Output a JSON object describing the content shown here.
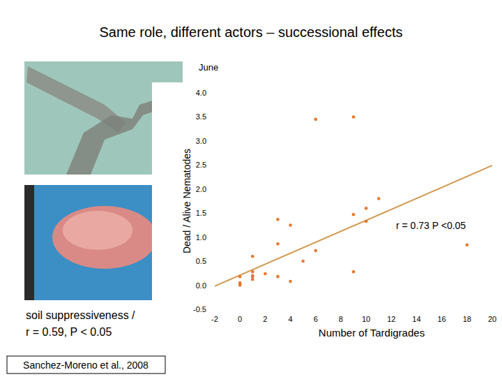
{
  "slide": {
    "title": "Same role, different actors – successional effects",
    "caption_lines": [
      "soil suppressiveness /",
      "r = 0.59, P < 0.05"
    ],
    "citation": "Sanchez-Moreno et al., 2008"
  },
  "chart_data": {
    "type": "scatter",
    "title": "June",
    "x_label": "Number of Tardigrades",
    "y_label": "Dead / Alive Nematodes",
    "annotation": "r = 0.73 P <0.05",
    "xlim": [
      -2,
      20
    ],
    "ylim": [
      -0.5,
      4
    ],
    "xticks": [
      -2,
      0,
      2,
      4,
      6,
      8,
      10,
      12,
      14,
      16,
      18,
      20
    ],
    "yticks": [
      -0.5,
      {
        "value": 0,
        "label": "0.0"
      },
      0.5,
      {
        "value": 1,
        "label": "1.0"
      },
      1.5,
      {
        "value": 2,
        "label": "2.0"
      },
      2.5,
      {
        "value": 3,
        "label": "3.0"
      },
      3.5,
      {
        "value": 4,
        "label": "4.0"
      }
    ],
    "grid": false,
    "series": [
      {
        "type": "scatter",
        "color": "#e8772e",
        "marker": "circle",
        "x": [
          6,
          9,
          0,
          0,
          0,
          0,
          1,
          1,
          1,
          1,
          1,
          2,
          3,
          3,
          3,
          4,
          4,
          5,
          6,
          9,
          9,
          10,
          10,
          11,
          18
        ],
        "values": [
          3.45,
          3.5,
          0.02,
          0.0,
          0.05,
          0.18,
          0.6,
          0.28,
          0.2,
          0.12,
          0.17,
          0.24,
          1.37,
          0.86,
          0.18,
          1.25,
          0.08,
          0.5,
          0.72,
          1.47,
          0.28,
          1.6,
          1.33,
          1.8,
          0.84
        ]
      },
      {
        "type": "line",
        "color": "#d29a52",
        "line_style": "solid",
        "x": [
          -2,
          20
        ],
        "values": [
          -0.02,
          2.49
        ]
      }
    ]
  }
}
